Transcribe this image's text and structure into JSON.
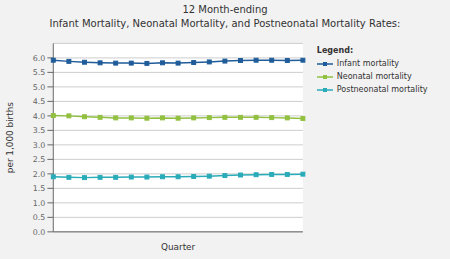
{
  "chart_data": {
    "type": "line",
    "title": "12 Month-ending",
    "subtitle": "Infant Mortality, Neonatal Mortality, and Postneonatal Mortality Rates:",
    "xlabel": "Quarter",
    "ylabel": "per 1,000 births",
    "categories": [
      null,
      null,
      null,
      null,
      null,
      null,
      null,
      null,
      null,
      null,
      null,
      null,
      null,
      null,
      null,
      null,
      null
    ],
    "series": [
      {
        "name": "Infant mortality",
        "color": "#1F5C99",
        "values": [
          5.92,
          5.88,
          5.85,
          5.83,
          5.82,
          5.82,
          5.81,
          5.83,
          5.82,
          5.84,
          5.86,
          5.89,
          5.91,
          5.92,
          5.92,
          5.91,
          5.92
        ]
      },
      {
        "name": "Neonatal mortality",
        "color": "#92C040",
        "values": [
          4.01,
          4.0,
          3.97,
          3.95,
          3.93,
          3.93,
          3.92,
          3.93,
          3.92,
          3.93,
          3.94,
          3.95,
          3.95,
          3.95,
          3.94,
          3.93,
          3.91
        ]
      },
      {
        "name": "Postneonatal mortality",
        "color": "#29ABB8",
        "values": [
          1.9,
          1.88,
          1.87,
          1.88,
          1.88,
          1.89,
          1.89,
          1.9,
          1.9,
          1.91,
          1.92,
          1.94,
          1.96,
          1.97,
          1.98,
          1.98,
          1.99
        ]
      }
    ],
    "ylim": [
      0,
      6.5
    ],
    "yticks": [
      {
        "value": 0,
        "label": "0.0"
      },
      0.5,
      {
        "value": 1,
        "label": "1.0"
      },
      1.5,
      {
        "value": 2,
        "label": "2.0"
      },
      2.5,
      {
        "value": 3,
        "label": "3.0"
      },
      3.5,
      {
        "value": 4,
        "label": "4.0"
      },
      4.5,
      {
        "value": 5,
        "label": "5.0"
      },
      5.5,
      {
        "value": 6,
        "label": "6.0"
      }
    ],
    "grid": true,
    "legend": "right",
    "legend_title": "Legend:",
    "tick_labels": "y",
    "marker": "square"
  }
}
